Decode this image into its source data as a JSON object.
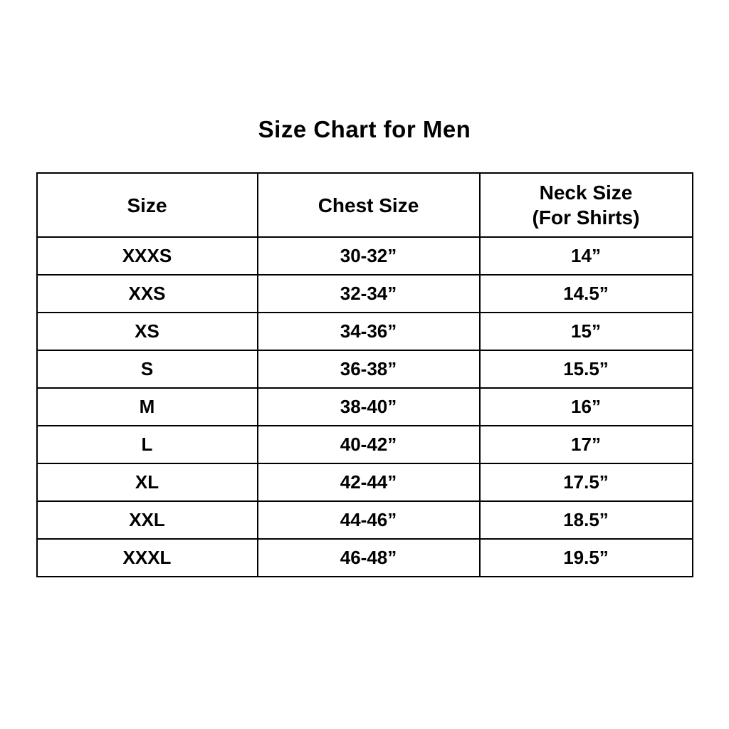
{
  "page": {
    "background_color": "#ffffff",
    "text_color": "#000000",
    "border_color": "#000000"
  },
  "chart_data": {
    "type": "table",
    "title": "Size Chart for Men",
    "legend_position": "none",
    "grid": "table-borders",
    "columns": [
      {
        "label": "Size",
        "sublabel": ""
      },
      {
        "label": "Chest Size",
        "sublabel": ""
      },
      {
        "label": "Neck Size",
        "sublabel": "(For Shirts)"
      }
    ],
    "rows": [
      {
        "size": "XXXS",
        "chest": "30-32”",
        "neck": "14”"
      },
      {
        "size": "XXS",
        "chest": "32-34”",
        "neck": "14.5”"
      },
      {
        "size": "XS",
        "chest": "34-36”",
        "neck": "15”"
      },
      {
        "size": "S",
        "chest": "36-38”",
        "neck": "15.5”"
      },
      {
        "size": "M",
        "chest": "38-40”",
        "neck": "16”"
      },
      {
        "size": "L",
        "chest": "40-42”",
        "neck": "17”"
      },
      {
        "size": "XL",
        "chest": "42-44”",
        "neck": "17.5”"
      },
      {
        "size": "XXL",
        "chest": "44-46”",
        "neck": "18.5”"
      },
      {
        "size": "XXXL",
        "chest": "46-48”",
        "neck": "19.5”"
      }
    ]
  }
}
